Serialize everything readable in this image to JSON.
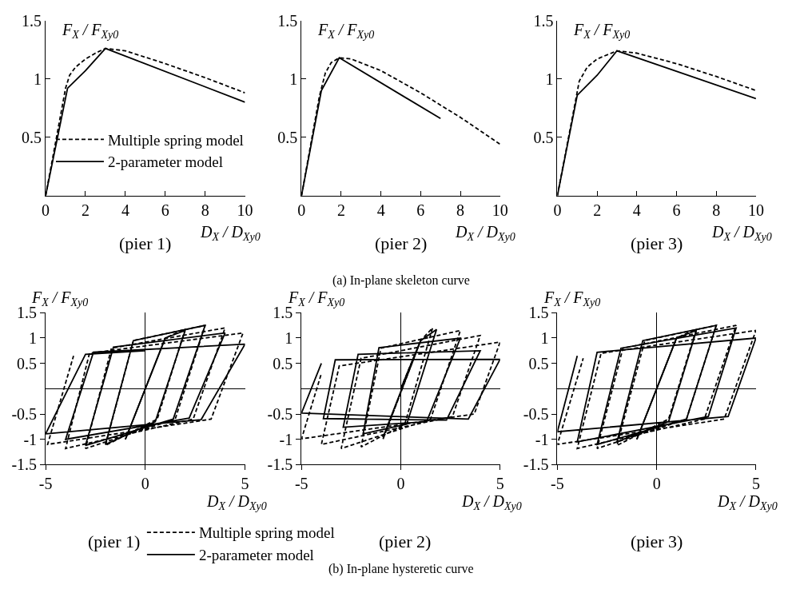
{
  "chart_data": [
    {
      "type": "line",
      "title": "(pier 1)",
      "xlabel": "D$_{X}$ / D$_{Xy0}$",
      "ylabel": "F$_{X}$ / F$_{Xy0}$",
      "annotations": [
        "(a) In-plane skeleton curve"
      ],
      "xlim": [
        0,
        10
      ],
      "ylim": [
        0,
        1.5
      ],
      "xticks": [
        0,
        2,
        4,
        6,
        8,
        10
      ],
      "yticks": [
        0.5,
        1,
        1.5
      ],
      "legend": "bottom left",
      "series": [
        {
          "name": "Multiple spring model",
          "color": "#000000",
          "line_style": "dashed",
          "x": [
            0,
            0.6,
            1.0,
            1.2,
            1.5,
            2,
            2.5,
            3,
            4,
            6,
            8,
            10
          ],
          "values": [
            0,
            0.55,
            0.92,
            1.03,
            1.1,
            1.17,
            1.22,
            1.26,
            1.24,
            1.13,
            1.01,
            0.88
          ]
        },
        {
          "name": "2-parameter model",
          "color": "#000000",
          "line_style": "solid",
          "x": [
            0,
            1.1,
            2.0,
            3.0,
            10
          ],
          "values": [
            0,
            0.92,
            1.07,
            1.26,
            0.8
          ]
        }
      ]
    },
    {
      "type": "line",
      "title": "(pier 2)",
      "xlabel": "D$_{X}$ / D$_{Xy0}$",
      "ylabel": "F$_{X}$ / F$_{Xy0}$",
      "xlim": [
        0,
        10
      ],
      "ylim": [
        0,
        1.5
      ],
      "xticks": [
        0,
        2,
        4,
        6,
        8,
        10
      ],
      "yticks": [
        0.5,
        1,
        1.5
      ],
      "series": [
        {
          "color": "#000000",
          "line_style": "dashed",
          "x": [
            0,
            0.9,
            1.2,
            1.5,
            1.9,
            2.5,
            4,
            6,
            8,
            10
          ],
          "values": [
            0,
            0.85,
            1.05,
            1.14,
            1.18,
            1.17,
            1.07,
            0.88,
            0.67,
            0.44
          ]
        },
        {
          "color": "#000000",
          "line_style": "solid",
          "x": [
            0,
            1.0,
            1.9,
            7
          ],
          "values": [
            0,
            0.9,
            1.18,
            0.66
          ]
        }
      ]
    },
    {
      "type": "line",
      "title": "(pier 3)",
      "xlabel": "D$_{X}$ / D$_{Xy0}$",
      "ylabel": "F$_{X}$ / F$_{Xy0}$",
      "xlim": [
        0,
        10
      ],
      "ylim": [
        0,
        1.5
      ],
      "xticks": [
        0,
        2,
        4,
        6,
        8,
        10
      ],
      "yticks": [
        0.5,
        1,
        1.5
      ],
      "series": [
        {
          "color": "#000000",
          "line_style": "dashed",
          "x": [
            0,
            0.9,
            1.1,
            1.5,
            2,
            3,
            4,
            6,
            8,
            10
          ],
          "values": [
            0,
            0.8,
            0.98,
            1.1,
            1.17,
            1.24,
            1.22,
            1.13,
            1.02,
            0.9
          ]
        },
        {
          "color": "#000000",
          "line_style": "solid",
          "x": [
            0,
            1.0,
            2.0,
            3.0,
            10
          ],
          "values": [
            0,
            0.86,
            1.03,
            1.24,
            0.83
          ]
        }
      ]
    },
    {
      "type": "line",
      "title": "(pier 1)",
      "xlabel": "D$_{X}$ / D$_{Xy0}$",
      "ylabel": "F$_{X}$ / F$_{Xy0}$",
      "annotations": [
        "(b) In-plane hysteretic curve"
      ],
      "xlim": [
        -5,
        5
      ],
      "ylim": [
        -1.5,
        1.5
      ],
      "xticks": [
        -5,
        0,
        5
      ],
      "yticks": [
        -1.5,
        -1,
        -0.5,
        0.5,
        1,
        1.5
      ],
      "legend": "bottom right",
      "series": [
        {
          "name": "Multiple spring model",
          "color": "#000000",
          "line_style": "dashed",
          "x": [
            0,
            1,
            -1,
            1,
            2,
            0.6,
            -2,
            -0.6,
            3,
            1.5,
            -3,
            -1.7,
            4,
            2.4,
            -4,
            -2.8,
            4.9,
            3.3,
            -4.9,
            -3.6
          ],
          "values": [
            0,
            1.0,
            -1.0,
            1.0,
            1.18,
            -0.6,
            -1.12,
            0.95,
            1.25,
            -0.6,
            -1.18,
            0.8,
            1.2,
            -0.6,
            -1.18,
            0.7,
            1.1,
            -0.6,
            -1.1,
            0.65
          ]
        },
        {
          "name": "2-parameter model",
          "color": "#000000",
          "line_style": "solid",
          "x": [
            0,
            1,
            -1,
            1,
            2,
            0.5,
            -2,
            -0.6,
            3,
            1.4,
            -3,
            -1.6,
            4,
            2.2,
            -4,
            -2.6,
            5,
            2.8,
            -5,
            -3.0,
            0
          ],
          "values": [
            0,
            1.0,
            -1.0,
            1.0,
            1.15,
            -0.65,
            -1.1,
            0.95,
            1.25,
            -0.6,
            -1.12,
            0.82,
            1.1,
            -0.58,
            -1.0,
            0.72,
            0.88,
            -0.61,
            -0.89,
            0.68,
            0.75
          ]
        }
      ]
    },
    {
      "type": "line",
      "title": "(pier 2)",
      "xlabel": "D$_{X}$ / D$_{Xy0}$",
      "ylabel": "F$_{X}$ / F$_{Xy0}$",
      "xlim": [
        -5,
        5
      ],
      "ylim": [
        -1.5,
        1.5
      ],
      "xticks": [
        -5,
        0,
        5
      ],
      "yticks": [
        -1.5,
        -1,
        -0.5,
        0.5,
        1,
        1.5
      ],
      "series": [
        {
          "color": "#000000",
          "line_style": "dashed",
          "x": [
            0,
            1,
            -0.9,
            1,
            1.6,
            0.2,
            -2,
            -1.0,
            3,
            1.5,
            -3,
            -2.0,
            4,
            2.6,
            -4,
            -3.1,
            5,
            3.7,
            -5,
            -4.0
          ],
          "values": [
            0,
            0.95,
            -1.0,
            0.95,
            1.2,
            -0.7,
            -1.15,
            0.8,
            1.15,
            -0.6,
            -1.18,
            0.6,
            1.05,
            -0.55,
            -1.1,
            0.45,
            0.92,
            -0.5,
            -0.99,
            0.3
          ]
        },
        {
          "color": "#000000",
          "line_style": "solid",
          "x": [
            0,
            1,
            -0.9,
            1,
            1.8,
            0.3,
            -1.9,
            -1.1,
            3,
            1.3,
            -2.9,
            -2.15,
            4,
            2.3,
            -3.9,
            -3.3,
            5,
            3.4,
            -5,
            -4.0
          ],
          "values": [
            0,
            0.95,
            -0.96,
            0.95,
            1.17,
            -0.7,
            -0.89,
            0.81,
            1.0,
            -0.65,
            -0.76,
            0.68,
            0.75,
            -0.62,
            -0.59,
            0.57,
            0.58,
            -0.6,
            -0.48,
            0.5
          ]
        }
      ]
    },
    {
      "type": "line",
      "title": "(pier 3)",
      "xlabel": "D$_{X}$ / D$_{Xy0}$",
      "ylabel": "F$_{X}$ / F$_{Xy0}$",
      "xlim": [
        -5,
        5
      ],
      "ylim": [
        -1.5,
        1.5
      ],
      "xticks": [
        -5,
        0,
        5
      ],
      "yticks": [
        -1.5,
        -1,
        -0.5,
        0.5,
        1,
        1.5
      ],
      "series": [
        {
          "color": "#000000",
          "line_style": "dashed",
          "x": [
            0,
            1,
            -1,
            1,
            2,
            0.6,
            -2,
            -0.6,
            3,
            1.5,
            -3,
            -1.7,
            4,
            2.4,
            -4,
            -2.8,
            5,
            3.4,
            -5,
            -3.7
          ],
          "values": [
            0,
            1.0,
            -1.0,
            1.0,
            1.18,
            -0.6,
            -1.12,
            0.95,
            1.25,
            -0.6,
            -1.18,
            0.8,
            1.25,
            -0.6,
            -1.18,
            0.7,
            1.15,
            -0.6,
            -1.1,
            0.6
          ]
        },
        {
          "color": "#000000",
          "line_style": "solid",
          "x": [
            0,
            1,
            -1,
            1,
            2,
            0.6,
            -2,
            -0.7,
            3,
            1.5,
            -3,
            -1.8,
            4,
            2.6,
            -4,
            -3,
            5,
            3.6,
            -5,
            -4
          ],
          "values": [
            0,
            1.0,
            -1.0,
            1.0,
            1.15,
            -0.65,
            -1.05,
            0.95,
            1.25,
            -0.6,
            -1.1,
            0.8,
            1.2,
            -0.55,
            -1.05,
            0.72,
            1.0,
            -0.55,
            -0.85,
            0.65
          ]
        }
      ]
    }
  ]
}
